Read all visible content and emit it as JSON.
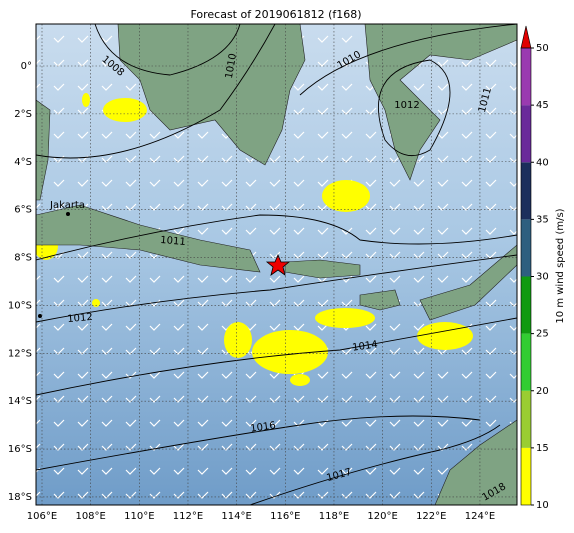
{
  "title": "Forecast of 2019061812 (f168)",
  "lon_ticks": [
    {
      "value": 106,
      "label": "106°E"
    },
    {
      "value": 108,
      "label": "108°E"
    },
    {
      "value": 110,
      "label": "110°E"
    },
    {
      "value": 112,
      "label": "112°E"
    },
    {
      "value": 114,
      "label": "114°E"
    },
    {
      "value": 116,
      "label": "116°E"
    },
    {
      "value": 118,
      "label": "118°E"
    },
    {
      "value": 120,
      "label": "120°E"
    },
    {
      "value": 122,
      "label": "122°E"
    },
    {
      "value": 124,
      "label": "124°E"
    }
  ],
  "lat_ticks": [
    {
      "value": 0,
      "label": "0°"
    },
    {
      "value": -2,
      "label": "2°S"
    },
    {
      "value": -4,
      "label": "4°S"
    },
    {
      "value": -6,
      "label": "6°S"
    },
    {
      "value": -8,
      "label": "8°S"
    },
    {
      "value": -10,
      "label": "10°S"
    },
    {
      "value": -12,
      "label": "12°S"
    },
    {
      "value": -14,
      "label": "14°S"
    },
    {
      "value": -16,
      "label": "16°S"
    },
    {
      "value": -18,
      "label": "18°S"
    }
  ],
  "colorbar": {
    "label": "10 m wind speed (m/s)",
    "lim": [
      10,
      50
    ],
    "ticks": [
      10,
      15,
      20,
      25,
      30,
      35,
      40,
      45,
      50
    ],
    "colors": [
      "#ffff00",
      "#9acd32",
      "#32cd32",
      "#109a10",
      "#2e5f7f",
      "#1c2f5c",
      "#6a2a9a",
      "#9a3ab0"
    ]
  },
  "contour_labels": [
    "1008",
    "1010",
    "1010",
    "1012",
    "1011",
    "1011",
    "1012",
    "1014",
    "1016",
    "1017",
    "1018"
  ],
  "places": [
    "Jakarta"
  ]
}
